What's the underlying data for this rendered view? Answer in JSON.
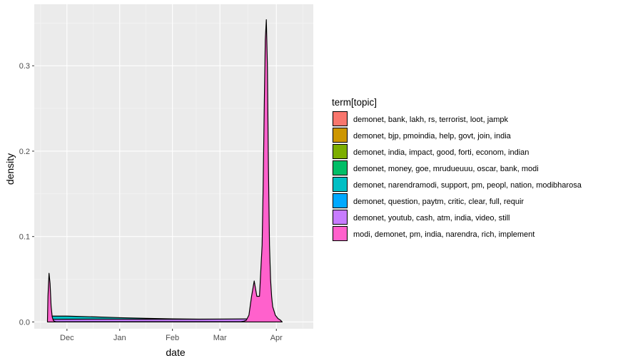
{
  "chart_data": {
    "type": "area",
    "subtype": "density",
    "xlabel": "date",
    "ylabel": "density",
    "x_ticks": [
      "Dec",
      "Jan",
      "Feb",
      "Mar",
      "Apr"
    ],
    "y_ticks": [
      "0.0",
      "0.1",
      "0.2",
      "0.3"
    ],
    "y_tick_values": [
      0.0,
      0.1,
      0.2,
      0.3
    ],
    "ylim": [
      -0.008,
      0.372
    ],
    "xlim_months": [
      -0.62,
      4.67
    ],
    "x_tick_positions_months": [
      0.0,
      1.0,
      2.0,
      2.9,
      3.97
    ],
    "x_tick_label_sparse_note": "",
    "grid": true,
    "background": "#EBEBEB",
    "legend": {
      "title": "term[topic]",
      "position": "right",
      "entries": [
        {
          "label": "demonet, bank, lakh, rs, terrorist, loot, jampk",
          "color": "#F8766D"
        },
        {
          "label": "demonet, bjp, pmoindia, help, govt, join, india",
          "color": "#CD9600"
        },
        {
          "label": "demonet, india, impact, good, forti, econom, indian",
          "color": "#7CAE00"
        },
        {
          "label": "demonet, money, goe, mrudueuuu, oscar, bank, modi",
          "color": "#00BE67"
        },
        {
          "label": "demonet, narendramodi, support, pm, peopl, nation, modibharosa",
          "color": "#00BFC4"
        },
        {
          "label": "demonet, question, paytm, critic, clear, full, requir",
          "color": "#00A9FF"
        },
        {
          "label": "demonet, youtub, cash, atm, india, video, still",
          "color": "#C77CFF"
        },
        {
          "label": "modi, demonet, pm, india, narendra, rich, implement",
          "color": "#FF61CC"
        }
      ]
    },
    "series": [
      {
        "name": "demonet, narendramodi, support, pm, peopl, nation, modibharosa",
        "color": "#00BFC4",
        "x_months": [
          -0.29,
          -0.28,
          0.0,
          0.5,
          1.0,
          1.5,
          2.0,
          2.5,
          3.0,
          3.5,
          3.74,
          3.75
        ],
        "density": [
          0.0,
          0.0068,
          0.0068,
          0.006,
          0.005,
          0.0042,
          0.0036,
          0.0033,
          0.0032,
          0.0031,
          0.003,
          0.0
        ]
      },
      {
        "name": "demonet, youtub, cash, atm, india, video, still",
        "color": "#C77CFF",
        "x_months": [
          -0.29,
          -0.28,
          0.0,
          0.5,
          1.0,
          1.5,
          2.0,
          2.5,
          3.0,
          3.5,
          3.8,
          4.0,
          4.01
        ],
        "density": [
          0.0,
          0.003,
          0.0032,
          0.0033,
          0.0033,
          0.0032,
          0.0031,
          0.0032,
          0.0034,
          0.0036,
          0.0037,
          0.0037,
          0.0
        ]
      },
      {
        "name": "modi, demonet, pm, india, narendra, rich, implement",
        "color": "#FF61CC",
        "x_months": [
          -0.37,
          -0.36,
          -0.34,
          -0.32,
          -0.3,
          -0.28,
          -0.26,
          -0.24,
          -0.22,
          -0.2,
          3.3,
          3.35,
          3.4,
          3.45,
          3.5,
          3.55,
          3.6,
          3.65,
          3.7,
          3.72,
          3.74,
          3.76,
          3.78,
          3.8,
          3.82,
          3.84,
          3.86,
          3.88,
          3.9,
          3.95,
          4.0,
          4.05,
          4.08
        ],
        "density": [
          0.0,
          0.03,
          0.057,
          0.045,
          0.018,
          0.006,
          0.002,
          0.0008,
          0.0004,
          0.0002,
          0.0003,
          0.0008,
          0.002,
          0.008,
          0.03,
          0.048,
          0.03,
          0.03,
          0.09,
          0.16,
          0.25,
          0.33,
          0.354,
          0.3,
          0.18,
          0.09,
          0.05,
          0.03,
          0.018,
          0.008,
          0.004,
          0.002,
          0.0
        ]
      }
    ]
  }
}
